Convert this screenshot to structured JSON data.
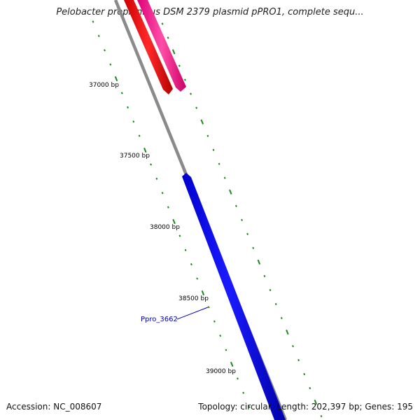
{
  "title": "Pelobacter propionicus DSM 2379 plasmid pPRO1, complete sequ...",
  "accession": "Accession: NC_008607",
  "summary": "Topology: circular; Length: 202,397 bp; Genes: 195",
  "scale_labels": [
    "37000 bp",
    "37500 bp",
    "38000 bp",
    "38500 bp",
    "39000 bp"
  ],
  "gene_label": "Ppro_3662",
  "colors": {
    "backbone": "#888888",
    "tick": "#1a8a1a",
    "gene_red": "#ff0000",
    "gene_pink": "#ff3399",
    "gene_blue": "#0000ff",
    "gene_label": "#0000aa"
  }
}
